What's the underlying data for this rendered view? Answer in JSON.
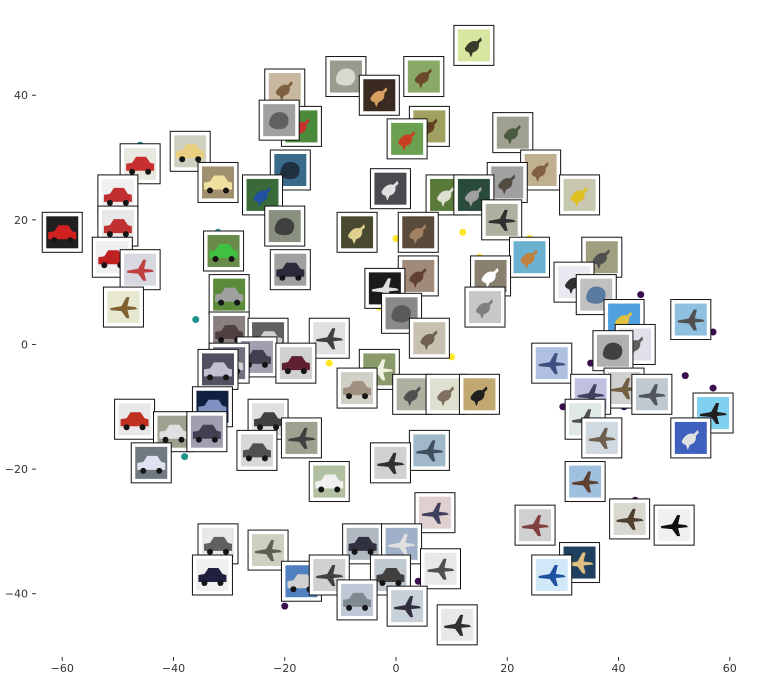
{
  "chart_data": {
    "type": "scatter",
    "title": "",
    "xlabel": "",
    "ylabel": "",
    "xlim": [
      -64,
      64
    ],
    "ylim": [
      -50,
      54
    ],
    "xticks": [
      -60,
      -40,
      -20,
      0,
      20,
      40,
      60
    ],
    "yticks": [
      -40,
      -20,
      0,
      20,
      40
    ],
    "xtick_labels": [
      "−60",
      "−40",
      "−20",
      "0",
      "20",
      "40",
      "60"
    ],
    "ytick_labels": [
      "−40",
      "−20",
      "0",
      "20",
      "40"
    ],
    "grid": false,
    "legend": "none",
    "colors": {
      "class_airplane": "#3b0f4f",
      "class_car": "#21918c",
      "class_bird": "#fde725"
    },
    "series": [
      {
        "color": "#3b0f4f",
        "points": [
          [
            19,
            25
          ],
          [
            36,
            13
          ],
          [
            44,
            8
          ],
          [
            57,
            2
          ],
          [
            35,
            -3
          ],
          [
            41,
            -3
          ],
          [
            52,
            -5
          ],
          [
            32,
            -7
          ],
          [
            47,
            -7
          ],
          [
            57,
            -7
          ],
          [
            30,
            -10
          ],
          [
            41,
            -10
          ],
          [
            53,
            -13
          ],
          [
            38,
            -16
          ],
          [
            43,
            -25
          ],
          [
            6,
            -29
          ],
          [
            -5,
            -33
          ],
          [
            -20,
            -42
          ],
          [
            4,
            -38
          ]
        ]
      },
      {
        "color": "#21918c",
        "points": [
          [
            -46,
            32
          ],
          [
            -52,
            22
          ],
          [
            -50,
            18
          ],
          [
            -44,
            14
          ],
          [
            -48,
            8
          ],
          [
            -32,
            18
          ],
          [
            -30,
            9
          ],
          [
            -36,
            4
          ],
          [
            -30,
            -3
          ],
          [
            -35,
            -10
          ],
          [
            -26,
            -12
          ],
          [
            -40,
            -12
          ],
          [
            -38,
            -18
          ],
          [
            -30,
            -38
          ],
          [
            -10,
            -24
          ],
          [
            -33,
            -35
          ]
        ]
      },
      {
        "color": "#fde725",
        "points": [
          [
            12,
            18
          ],
          [
            15,
            14
          ],
          [
            0,
            17
          ],
          [
            24,
            17
          ],
          [
            20,
            11
          ],
          [
            5,
            10
          ],
          [
            18,
            6
          ],
          [
            -12,
            -3
          ],
          [
            -3,
            6
          ],
          [
            -2,
            -5
          ],
          [
            3,
            3
          ],
          [
            10,
            -2
          ]
        ]
      }
    ],
    "thumbnails": [
      {
        "x": 14,
        "y": 48,
        "bg": "#d7e6a0",
        "fg": "#3a3a2a",
        "shape": "bird"
      },
      {
        "x": 5,
        "y": 43,
        "bg": "#8aa866",
        "fg": "#6a4a2a",
        "shape": "bird"
      },
      {
        "x": -9,
        "y": 43,
        "bg": "#9a9a90",
        "fg": "#d8d8d0",
        "shape": "blob"
      },
      {
        "x": -3,
        "y": 40,
        "bg": "#3a2a20",
        "fg": "#d8a060",
        "shape": "bird"
      },
      {
        "x": -20,
        "y": 41,
        "bg": "#c8b8a0",
        "fg": "#806040",
        "shape": "bird"
      },
      {
        "x": -17,
        "y": 35,
        "bg": "#4a8a3a",
        "fg": "#c83030",
        "shape": "bird"
      },
      {
        "x": -21,
        "y": 36,
        "bg": "#a0a0a0",
        "fg": "#606060",
        "shape": "blob"
      },
      {
        "x": 6,
        "y": 35,
        "bg": "#a0a060",
        "fg": "#604020",
        "shape": "bird"
      },
      {
        "x": 2,
        "y": 33,
        "bg": "#6aa050",
        "fg": "#c84020",
        "shape": "bird"
      },
      {
        "x": 21,
        "y": 34,
        "bg": "#a0a090",
        "fg": "#4a5a40",
        "shape": "bird"
      },
      {
        "x": 26,
        "y": 28,
        "bg": "#c0b090",
        "fg": "#806040",
        "shape": "bird"
      },
      {
        "x": 20,
        "y": 26,
        "bg": "#a0a0a0",
        "fg": "#504a40",
        "shape": "bird"
      },
      {
        "x": -46,
        "y": 29,
        "bg": "#e8e8e0",
        "fg": "#c83030",
        "shape": "car"
      },
      {
        "x": -37,
        "y": 31,
        "bg": "#d0d0c0",
        "fg": "#e8d080",
        "shape": "car"
      },
      {
        "x": -32,
        "y": 26,
        "bg": "#a09070",
        "fg": "#f0e0a0",
        "shape": "car"
      },
      {
        "x": -19,
        "y": 28,
        "bg": "#3a6a8a",
        "fg": "#203040",
        "shape": "blob"
      },
      {
        "x": -24,
        "y": 24,
        "bg": "#3a6a3a",
        "fg": "#2050a0",
        "shape": "bird"
      },
      {
        "x": -1,
        "y": 25,
        "bg": "#4a4a50",
        "fg": "#e0e0e0",
        "shape": "bird"
      },
      {
        "x": 9,
        "y": 24,
        "bg": "#5a7a3a",
        "fg": "#e0e0d0",
        "shape": "bird"
      },
      {
        "x": 14,
        "y": 24,
        "bg": "#2a4a3a",
        "fg": "#a0a0a0",
        "shape": "bird"
      },
      {
        "x": 33,
        "y": 24,
        "bg": "#c8c8b0",
        "fg": "#e0c020",
        "shape": "bird"
      },
      {
        "x": -50,
        "y": 24,
        "bg": "#f0f0f0",
        "fg": "#c03030",
        "shape": "car"
      },
      {
        "x": 19,
        "y": 20,
        "bg": "#b0b0a0",
        "fg": "#303030",
        "shape": "plane"
      },
      {
        "x": -20,
        "y": 19,
        "bg": "#8a9080",
        "fg": "#404040",
        "shape": "blob"
      },
      {
        "x": -60,
        "y": 18,
        "bg": "#202020",
        "fg": "#d02020",
        "shape": "car"
      },
      {
        "x": -50,
        "y": 19,
        "bg": "#e8e8e8",
        "fg": "#c03030",
        "shape": "car"
      },
      {
        "x": -7,
        "y": 18,
        "bg": "#4a4a30",
        "fg": "#e0d090",
        "shape": "bird"
      },
      {
        "x": 4,
        "y": 18,
        "bg": "#5a4a3a",
        "fg": "#a08060",
        "shape": "bird"
      },
      {
        "x": -51,
        "y": 14,
        "bg": "#f0f0f0",
        "fg": "#c02020",
        "shape": "car"
      },
      {
        "x": -46,
        "y": 12,
        "bg": "#d8d8e0",
        "fg": "#c04040",
        "shape": "plane"
      },
      {
        "x": -31,
        "y": 15,
        "bg": "#6a8a4a",
        "fg": "#40c040",
        "shape": "car"
      },
      {
        "x": -19,
        "y": 12,
        "bg": "#a0a0a0",
        "fg": "#2a2a3a",
        "shape": "car"
      },
      {
        "x": 24,
        "y": 14,
        "bg": "#6ab0d0",
        "fg": "#c08040",
        "shape": "bird"
      },
      {
        "x": 37,
        "y": 14,
        "bg": "#a0a080",
        "fg": "#505050",
        "shape": "bird"
      },
      {
        "x": 4,
        "y": 11,
        "bg": "#a08a7a",
        "fg": "#604030",
        "shape": "bird"
      },
      {
        "x": 17,
        "y": 11,
        "bg": "#8a8070",
        "fg": "#ffffff",
        "shape": "bird"
      },
      {
        "x": 32,
        "y": 10,
        "bg": "#e8e8f0",
        "fg": "#303030",
        "shape": "bird"
      },
      {
        "x": 36,
        "y": 8,
        "bg": "#c0c0c0",
        "fg": "#5a7aa0",
        "shape": "blob"
      },
      {
        "x": -30,
        "y": 8,
        "bg": "#5a8a3a",
        "fg": "#a0a0a0",
        "shape": "car"
      },
      {
        "x": -2,
        "y": 9,
        "bg": "#1a1a1a",
        "fg": "#e0e0e0",
        "shape": "plane"
      },
      {
        "x": 16,
        "y": 6,
        "bg": "#c8c8c8",
        "fg": "#808080",
        "shape": "bird"
      },
      {
        "x": -49,
        "y": 6,
        "bg": "#e8e8d0",
        "fg": "#806030",
        "shape": "plane"
      },
      {
        "x": 1,
        "y": 5,
        "bg": "#8a8a8a",
        "fg": "#5a5a5a",
        "shape": "blob"
      },
      {
        "x": 41,
        "y": 4,
        "bg": "#50a0e0",
        "fg": "#e0c040",
        "shape": "bird"
      },
      {
        "x": 53,
        "y": 4,
        "bg": "#90c0e0",
        "fg": "#505050",
        "shape": "plane"
      },
      {
        "x": -30,
        "y": 2,
        "bg": "#8a8080",
        "fg": "#504040",
        "shape": "car"
      },
      {
        "x": -23,
        "y": 1,
        "bg": "#606060",
        "fg": "#d0d0d0",
        "shape": "car"
      },
      {
        "x": -12,
        "y": 1,
        "bg": "#e0e0e0",
        "fg": "#404040",
        "shape": "plane"
      },
      {
        "x": 6,
        "y": 1,
        "bg": "#c8c0b0",
        "fg": "#706050",
        "shape": "bird"
      },
      {
        "x": 43,
        "y": 0,
        "bg": "#e0e0e8",
        "fg": "#606060",
        "shape": "bird"
      },
      {
        "x": 39,
        "y": -1,
        "bg": "#b0b0b0",
        "fg": "#404040",
        "shape": "blob"
      },
      {
        "x": -25,
        "y": -2,
        "bg": "#a0a0b0",
        "fg": "#404050",
        "shape": "car"
      },
      {
        "x": -30,
        "y": -3,
        "bg": "#707080",
        "fg": "#d0d0d0",
        "shape": "car"
      },
      {
        "x": -18,
        "y": -3,
        "bg": "#d0d0d0",
        "fg": "#602030",
        "shape": "car"
      },
      {
        "x": 28,
        "y": -3,
        "bg": "#b0c0e0",
        "fg": "#405080",
        "shape": "plane"
      },
      {
        "x": -32,
        "y": -4,
        "bg": "#505060",
        "fg": "#c0c0d0",
        "shape": "car"
      },
      {
        "x": -3,
        "y": -4,
        "bg": "#8a9a6a",
        "fg": "#f0f0e0",
        "shape": "plane"
      },
      {
        "x": -7,
        "y": -7,
        "bg": "#d0d0c8",
        "fg": "#a09080",
        "shape": "car"
      },
      {
        "x": 3,
        "y": -8,
        "bg": "#b0b0a0",
        "fg": "#505050",
        "shape": "bird"
      },
      {
        "x": 9,
        "y": -8,
        "bg": "#e0e0d0",
        "fg": "#807060",
        "shape": "bird"
      },
      {
        "x": 15,
        "y": -8,
        "bg": "#c0a870",
        "fg": "#202020",
        "shape": "bird"
      },
      {
        "x": 41,
        "y": -7,
        "bg": "#d0d0d0",
        "fg": "#706040",
        "shape": "plane"
      },
      {
        "x": 46,
        "y": -8,
        "bg": "#c0c8d0",
        "fg": "#505560",
        "shape": "plane"
      },
      {
        "x": 35,
        "y": -8,
        "bg": "#c0c0e0",
        "fg": "#404060",
        "shape": "plane"
      },
      {
        "x": -33,
        "y": -10,
        "bg": "#102040",
        "fg": "#8090c0",
        "shape": "car"
      },
      {
        "x": -47,
        "y": -12,
        "bg": "#e8e8e8",
        "fg": "#c03020",
        "shape": "car"
      },
      {
        "x": -23,
        "y": -12,
        "bg": "#e0e0e0",
        "fg": "#404040",
        "shape": "car"
      },
      {
        "x": 34,
        "y": -12,
        "bg": "#e0e8e8",
        "fg": "#505050",
        "shape": "plane"
      },
      {
        "x": 57,
        "y": -11,
        "bg": "#80d0f0",
        "fg": "#202020",
        "shape": "plane"
      },
      {
        "x": -40,
        "y": -14,
        "bg": "#a0a090",
        "fg": "#e0e0e0",
        "shape": "car"
      },
      {
        "x": -34,
        "y": -14,
        "bg": "#a0a0b0",
        "fg": "#404050",
        "shape": "car"
      },
      {
        "x": -17,
        "y": -15,
        "bg": "#a0a090",
        "fg": "#404040",
        "shape": "plane"
      },
      {
        "x": 37,
        "y": -15,
        "bg": "#d0d8e0",
        "fg": "#706050",
        "shape": "plane"
      },
      {
        "x": 53,
        "y": -15,
        "bg": "#4060c0",
        "fg": "#e0e0e0",
        "shape": "bird"
      },
      {
        "x": -25,
        "y": -17,
        "bg": "#d8d8d8",
        "fg": "#505050",
        "shape": "car"
      },
      {
        "x": 6,
        "y": -17,
        "bg": "#a0b8c8",
        "fg": "#405060",
        "shape": "plane"
      },
      {
        "x": -44,
        "y": -19,
        "bg": "#707880",
        "fg": "#e0e0f0",
        "shape": "car"
      },
      {
        "x": -1,
        "y": -19,
        "bg": "#d0d0d0",
        "fg": "#303030",
        "shape": "plane"
      },
      {
        "x": -12,
        "y": -22,
        "bg": "#b0c0a0",
        "fg": "#f0f0f0",
        "shape": "car"
      },
      {
        "x": 34,
        "y": -22,
        "bg": "#a0c0e0",
        "fg": "#604030",
        "shape": "plane"
      },
      {
        "x": 7,
        "y": -27,
        "bg": "#e0d0d0",
        "fg": "#404060",
        "shape": "plane"
      },
      {
        "x": 25,
        "y": -29,
        "bg": "#d0d0d0",
        "fg": "#804040",
        "shape": "plane"
      },
      {
        "x": 42,
        "y": -28,
        "bg": "#d8d8d0",
        "fg": "#504030",
        "shape": "plane"
      },
      {
        "x": 50,
        "y": -29,
        "bg": "#f0f0f0",
        "fg": "#101010",
        "shape": "plane"
      },
      {
        "x": -6,
        "y": -32,
        "bg": "#b0b8c0",
        "fg": "#303040",
        "shape": "car"
      },
      {
        "x": 1,
        "y": -32,
        "bg": "#a0b0c8",
        "fg": "#e0e0e0",
        "shape": "plane"
      },
      {
        "x": -32,
        "y": -32,
        "bg": "#e8e8e8",
        "fg": "#606060",
        "shape": "car"
      },
      {
        "x": -23,
        "y": -33,
        "bg": "#d0d0c0",
        "fg": "#606050",
        "shape": "plane"
      },
      {
        "x": 33,
        "y": -35,
        "bg": "#204060",
        "fg": "#e0c080",
        "shape": "plane"
      },
      {
        "x": -17,
        "y": -38,
        "bg": "#5080c0",
        "fg": "#d0d0d0",
        "shape": "car"
      },
      {
        "x": -12,
        "y": -37,
        "bg": "#d0d0d0",
        "fg": "#404040",
        "shape": "plane"
      },
      {
        "x": -1,
        "y": -37,
        "bg": "#c0c8d0",
        "fg": "#404040",
        "shape": "car"
      },
      {
        "x": 8,
        "y": -36,
        "bg": "#e8e8e8",
        "fg": "#505050",
        "shape": "plane"
      },
      {
        "x": 28,
        "y": -37,
        "bg": "#d0e8f8",
        "fg": "#2050a0",
        "shape": "plane"
      },
      {
        "x": -33,
        "y": -37,
        "bg": "#f0f0f0",
        "fg": "#202040",
        "shape": "car"
      },
      {
        "x": -7,
        "y": -41,
        "bg": "#c0c8d8",
        "fg": "#808890",
        "shape": "car"
      },
      {
        "x": 2,
        "y": -42,
        "bg": "#c8d0d8",
        "fg": "#303040",
        "shape": "plane"
      },
      {
        "x": 11,
        "y": -45,
        "bg": "#e8e8e8",
        "fg": "#303030",
        "shape": "plane"
      }
    ]
  }
}
